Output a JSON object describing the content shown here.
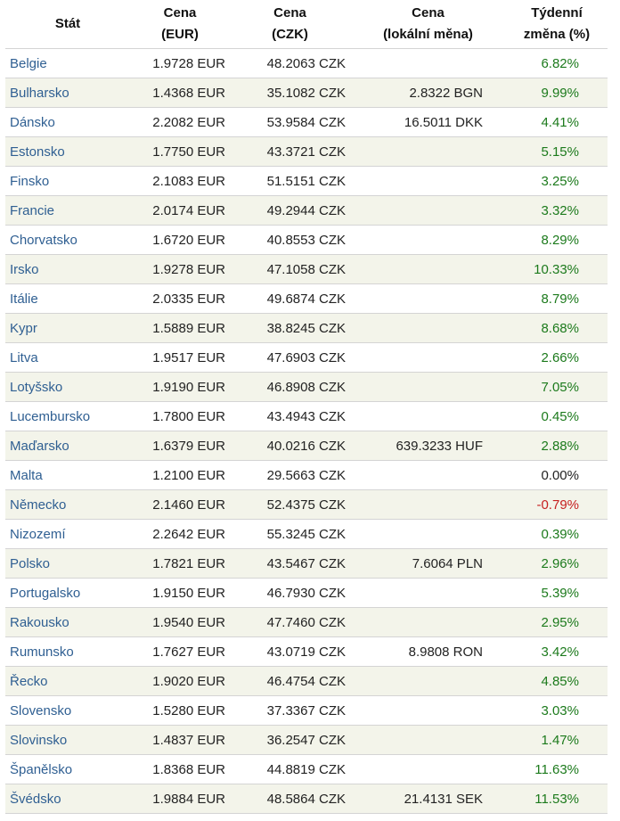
{
  "header": {
    "country": "Stát",
    "eur_line1": "Cena",
    "eur_line2": "(EUR)",
    "czk_line1": "Cena",
    "czk_line2": "(CZK)",
    "local_line1": "Cena",
    "local_line2": "(lokální měna)",
    "change_line1": "Týdenní",
    "change_line2": "změna (%)"
  },
  "rows": [
    {
      "country": "Belgie",
      "eur": "1.9728 EUR",
      "czk": "48.2063 CZK",
      "local": "",
      "change": "6.82%",
      "trend": "pos"
    },
    {
      "country": "Bulharsko",
      "eur": "1.4368 EUR",
      "czk": "35.1082 CZK",
      "local": "2.8322 BGN",
      "change": "9.99%",
      "trend": "pos"
    },
    {
      "country": "Dánsko",
      "eur": "2.2082 EUR",
      "czk": "53.9584 CZK",
      "local": "16.5011 DKK",
      "change": "4.41%",
      "trend": "pos"
    },
    {
      "country": "Estonsko",
      "eur": "1.7750 EUR",
      "czk": "43.3721 CZK",
      "local": "",
      "change": "5.15%",
      "trend": "pos"
    },
    {
      "country": "Finsko",
      "eur": "2.1083 EUR",
      "czk": "51.5151 CZK",
      "local": "",
      "change": "3.25%",
      "trend": "pos"
    },
    {
      "country": "Francie",
      "eur": "2.0174 EUR",
      "czk": "49.2944 CZK",
      "local": "",
      "change": "3.32%",
      "trend": "pos"
    },
    {
      "country": "Chorvatsko",
      "eur": "1.6720 EUR",
      "czk": "40.8553 CZK",
      "local": "",
      "change": "8.29%",
      "trend": "pos"
    },
    {
      "country": "Irsko",
      "eur": "1.9278 EUR",
      "czk": "47.1058 CZK",
      "local": "",
      "change": "10.33%",
      "trend": "pos"
    },
    {
      "country": "Itálie",
      "eur": "2.0335 EUR",
      "czk": "49.6874 CZK",
      "local": "",
      "change": "8.79%",
      "trend": "pos"
    },
    {
      "country": "Kypr",
      "eur": "1.5889 EUR",
      "czk": "38.8245 CZK",
      "local": "",
      "change": "8.68%",
      "trend": "pos"
    },
    {
      "country": "Litva",
      "eur": "1.9517 EUR",
      "czk": "47.6903 CZK",
      "local": "",
      "change": "2.66%",
      "trend": "pos"
    },
    {
      "country": "Lotyšsko",
      "eur": "1.9190 EUR",
      "czk": "46.8908 CZK",
      "local": "",
      "change": "7.05%",
      "trend": "pos"
    },
    {
      "country": "Lucembursko",
      "eur": "1.7800 EUR",
      "czk": "43.4943 CZK",
      "local": "",
      "change": "0.45%",
      "trend": "pos"
    },
    {
      "country": "Maďarsko",
      "eur": "1.6379 EUR",
      "czk": "40.0216 CZK",
      "local": "639.3233 HUF",
      "change": "2.88%",
      "trend": "pos"
    },
    {
      "country": "Malta",
      "eur": "1.2100 EUR",
      "czk": "29.5663 CZK",
      "local": "",
      "change": "0.00%",
      "trend": "zero"
    },
    {
      "country": "Německo",
      "eur": "2.1460 EUR",
      "czk": "52.4375 CZK",
      "local": "",
      "change": "-0.79%",
      "trend": "neg"
    },
    {
      "country": "Nizozemí",
      "eur": "2.2642 EUR",
      "czk": "55.3245 CZK",
      "local": "",
      "change": "0.39%",
      "trend": "pos"
    },
    {
      "country": "Polsko",
      "eur": "1.7821 EUR",
      "czk": "43.5467 CZK",
      "local": "7.6064 PLN",
      "change": "2.96%",
      "trend": "pos"
    },
    {
      "country": "Portugalsko",
      "eur": "1.9150 EUR",
      "czk": "46.7930 CZK",
      "local": "",
      "change": "5.39%",
      "trend": "pos"
    },
    {
      "country": "Rakousko",
      "eur": "1.9540 EUR",
      "czk": "47.7460 CZK",
      "local": "",
      "change": "2.95%",
      "trend": "pos"
    },
    {
      "country": "Rumunsko",
      "eur": "1.7627 EUR",
      "czk": "43.0719 CZK",
      "local": "8.9808 RON",
      "change": "3.42%",
      "trend": "pos"
    },
    {
      "country": "Řecko",
      "eur": "1.9020 EUR",
      "czk": "46.4754 CZK",
      "local": "",
      "change": "4.85%",
      "trend": "pos"
    },
    {
      "country": "Slovensko",
      "eur": "1.5280 EUR",
      "czk": "37.3367 CZK",
      "local": "",
      "change": "3.03%",
      "trend": "pos"
    },
    {
      "country": "Slovinsko",
      "eur": "1.4837 EUR",
      "czk": "36.2547 CZK",
      "local": "",
      "change": "1.47%",
      "trend": "pos"
    },
    {
      "country": "Španělsko",
      "eur": "1.8368 EUR",
      "czk": "44.8819 CZK",
      "local": "",
      "change": "11.63%",
      "trend": "pos"
    },
    {
      "country": "Švédsko",
      "eur": "1.9884 EUR",
      "czk": "48.5864 CZK",
      "local": "21.4131 SEK",
      "change": "11.53%",
      "trend": "pos"
    }
  ]
}
